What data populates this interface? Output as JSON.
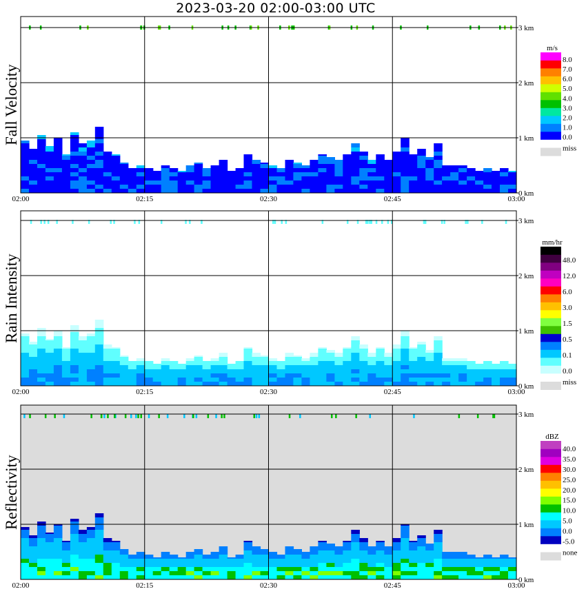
{
  "title": "2023-03-20  02:00-03:00 UTC",
  "time_ticks": [
    "02:00",
    "02:15",
    "02:30",
    "02:45",
    "03:00"
  ],
  "height_ticks": [
    "0 km",
    "1 km",
    "2 km",
    "3 km"
  ],
  "chart_data": [
    {
      "type": "heatmap",
      "title": "Fall Velocity",
      "units": "m/s",
      "xlim": [
        "02:00",
        "03:00"
      ],
      "ylim": [
        0,
        3.1
      ],
      "grid": true,
      "legend_placement": "right",
      "colorbar": {
        "colors": [
          "#0000ff",
          "#0080ff",
          "#00c8ff",
          "#00e8a0",
          "#00c000",
          "#60e000",
          "#d0ff00",
          "#ffc000",
          "#ff8000",
          "#ff0000",
          "#ff00ff"
        ],
        "labels": [
          "0.0",
          "1.0",
          "2.0",
          "3.0",
          "4.0",
          "5.0",
          "6.0",
          "7.0",
          "8.0"
        ],
        "missing_color": "#dcdcdc",
        "missing_label": "miss"
      },
      "echo_top_km": [
        0.95,
        0.8,
        1.05,
        0.85,
        1.0,
        0.7,
        1.1,
        0.9,
        0.95,
        1.2,
        0.75,
        0.7,
        0.55,
        0.45,
        0.5,
        0.45,
        0.4,
        0.5,
        0.45,
        0.4,
        0.5,
        0.55,
        0.45,
        0.5,
        0.6,
        0.4,
        0.45,
        0.7,
        0.6,
        0.55,
        0.5,
        0.45,
        0.6,
        0.55,
        0.5,
        0.6,
        0.7,
        0.65,
        0.6,
        0.7,
        0.9,
        0.75,
        0.6,
        0.7,
        0.6,
        0.75,
        1.0,
        0.7,
        0.8,
        0.65,
        0.9,
        0.5,
        0.5,
        0.5,
        0.45,
        0.4,
        0.45,
        0.4,
        0.45,
        0.4
      ],
      "background_color": "#ffffff"
    },
    {
      "type": "heatmap",
      "title": "Rain Intensity",
      "units": "mm/hr",
      "xlim": [
        "02:00",
        "03:00"
      ],
      "ylim": [
        0,
        3.1
      ],
      "grid": true,
      "legend_placement": "right",
      "colorbar": {
        "colors": [
          "#c8ffff",
          "#60ffff",
          "#00c8ff",
          "#0080ff",
          "#0000d0",
          "#40c000",
          "#80ff40",
          "#ffff00",
          "#ffc000",
          "#ff8000",
          "#ff0000",
          "#ff00c0",
          "#c000c0",
          "#800080",
          "#400040",
          "#000000"
        ],
        "labels": [
          "0.0",
          "0.1",
          "0.5",
          "1.5",
          "3.0",
          "6.0",
          "12.0",
          "48.0"
        ],
        "missing_color": "#dcdcdc",
        "missing_label": "miss"
      },
      "echo_top_km": [
        0.95,
        0.8,
        1.05,
        0.85,
        1.0,
        0.7,
        1.1,
        0.9,
        0.95,
        1.2,
        0.75,
        0.7,
        0.55,
        0.45,
        0.5,
        0.45,
        0.4,
        0.5,
        0.45,
        0.4,
        0.5,
        0.55,
        0.45,
        0.5,
        0.6,
        0.4,
        0.45,
        0.7,
        0.6,
        0.55,
        0.5,
        0.45,
        0.6,
        0.55,
        0.5,
        0.6,
        0.7,
        0.65,
        0.6,
        0.7,
        0.9,
        0.75,
        0.6,
        0.7,
        0.6,
        0.75,
        1.0,
        0.7,
        0.8,
        0.65,
        0.9,
        0.5,
        0.5,
        0.5,
        0.45,
        0.4,
        0.45,
        0.4,
        0.45,
        0.4
      ],
      "background_color": "#ffffff"
    },
    {
      "type": "heatmap",
      "title": "Reflectivity",
      "units": "dBZ",
      "xlim": [
        "02:00",
        "03:00"
      ],
      "ylim": [
        0,
        3.1
      ],
      "grid": true,
      "legend_placement": "right",
      "colorbar": {
        "colors": [
          "#0000c0",
          "#0080ff",
          "#00c8ff",
          "#00ffff",
          "#00c000",
          "#80ff00",
          "#ffff00",
          "#ffc000",
          "#ff8000",
          "#ff0000",
          "#e000e0",
          "#a000c0",
          "#c040c0"
        ],
        "labels": [
          "-5.0",
          "0.0",
          "5.0",
          "10.0",
          "15.0",
          "20.0",
          "25.0",
          "30.0",
          "35.0",
          "40.0"
        ],
        "missing_color": "#dcdcdc",
        "missing_label": "none"
      },
      "echo_top_km": [
        0.95,
        0.8,
        1.05,
        0.85,
        1.0,
        0.7,
        1.1,
        0.9,
        0.95,
        1.2,
        0.75,
        0.7,
        0.55,
        0.45,
        0.5,
        0.45,
        0.4,
        0.5,
        0.45,
        0.4,
        0.5,
        0.55,
        0.45,
        0.5,
        0.6,
        0.4,
        0.45,
        0.7,
        0.6,
        0.55,
        0.5,
        0.45,
        0.6,
        0.55,
        0.5,
        0.6,
        0.7,
        0.65,
        0.6,
        0.7,
        0.9,
        0.75,
        0.6,
        0.7,
        0.6,
        0.75,
        1.0,
        0.7,
        0.8,
        0.65,
        0.9,
        0.5,
        0.5,
        0.5,
        0.45,
        0.4,
        0.45,
        0.4,
        0.45,
        0.4
      ],
      "background_color": "#dcdcdc"
    }
  ]
}
